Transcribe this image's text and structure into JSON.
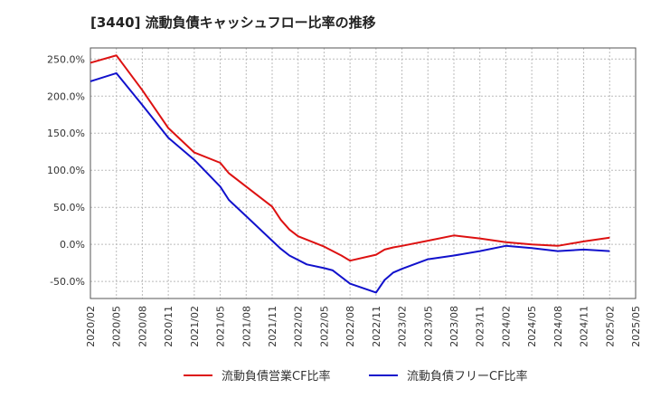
{
  "chart_data": {
    "type": "line",
    "title": "[3440]  流動負債キャッシュフロー比率の推移",
    "xlabel": "",
    "ylabel": "",
    "x_ticks": [
      "2020/02",
      "2020/05",
      "2020/08",
      "2020/11",
      "2021/02",
      "2021/05",
      "2021/08",
      "2021/11",
      "2022/02",
      "2022/05",
      "2022/08",
      "2022/11",
      "2023/02",
      "2023/05",
      "2023/08",
      "2023/11",
      "2024/02",
      "2024/05",
      "2024/08",
      "2024/11",
      "2025/02",
      "2025/05"
    ],
    "y_ticks": [
      "250.0%",
      "200.0%",
      "150.0%",
      "100.0%",
      "50.0%",
      "0.0%",
      "-50.0%"
    ],
    "y_tick_values": [
      250,
      200,
      150,
      100,
      50,
      0,
      -50
    ],
    "ylim": [
      -73,
      265
    ],
    "x_range": [
      "2020/02",
      "2025/05"
    ],
    "grid": true,
    "legend_position": "bottom",
    "series": [
      {
        "name": "流動負債営業CF比率",
        "color": "#dd1111",
        "points": [
          [
            "2020/02",
            245
          ],
          [
            "2020/05",
            255
          ],
          [
            "2020/08",
            208
          ],
          [
            "2020/11",
            157
          ],
          [
            "2021/02",
            124
          ],
          [
            "2021/05",
            110
          ],
          [
            "2021/06",
            96
          ],
          [
            "2021/08",
            78
          ],
          [
            "2021/11",
            51
          ],
          [
            "2021/12",
            33
          ],
          [
            "2022/01",
            20
          ],
          [
            "2022/02",
            11
          ],
          [
            "2022/05",
            -3
          ],
          [
            "2022/07",
            -15
          ],
          [
            "2022/08",
            -22
          ],
          [
            "2022/11",
            -14
          ],
          [
            "2022/12",
            -7
          ],
          [
            "2023/01",
            -4
          ],
          [
            "2023/02",
            -2
          ],
          [
            "2023/05",
            5
          ],
          [
            "2023/08",
            12
          ],
          [
            "2023/11",
            8
          ],
          [
            "2024/02",
            3
          ],
          [
            "2024/05",
            0
          ],
          [
            "2024/08",
            -2
          ],
          [
            "2024/11",
            4
          ],
          [
            "2025/02",
            9
          ]
        ]
      },
      {
        "name": "流動負債フリーCF比率",
        "color": "#1111cc",
        "points": [
          [
            "2020/02",
            220
          ],
          [
            "2020/05",
            231
          ],
          [
            "2020/08",
            188
          ],
          [
            "2020/11",
            144
          ],
          [
            "2021/02",
            114
          ],
          [
            "2021/05",
            78
          ],
          [
            "2021/06",
            60
          ],
          [
            "2021/08",
            38
          ],
          [
            "2021/11",
            5
          ],
          [
            "2021/12",
            -6
          ],
          [
            "2022/01",
            -15
          ],
          [
            "2022/02",
            -21
          ],
          [
            "2022/03",
            -27
          ],
          [
            "2022/05",
            -32
          ],
          [
            "2022/06",
            -35
          ],
          [
            "2022/08",
            -53
          ],
          [
            "2022/11",
            -65
          ],
          [
            "2022/12",
            -48
          ],
          [
            "2023/01",
            -38
          ],
          [
            "2023/02",
            -33
          ],
          [
            "2023/05",
            -20
          ],
          [
            "2023/08",
            -15
          ],
          [
            "2023/11",
            -9
          ],
          [
            "2024/02",
            -2
          ],
          [
            "2024/05",
            -5
          ],
          [
            "2024/08",
            -9
          ],
          [
            "2024/11",
            -7
          ],
          [
            "2025/02",
            -9
          ]
        ]
      }
    ]
  }
}
